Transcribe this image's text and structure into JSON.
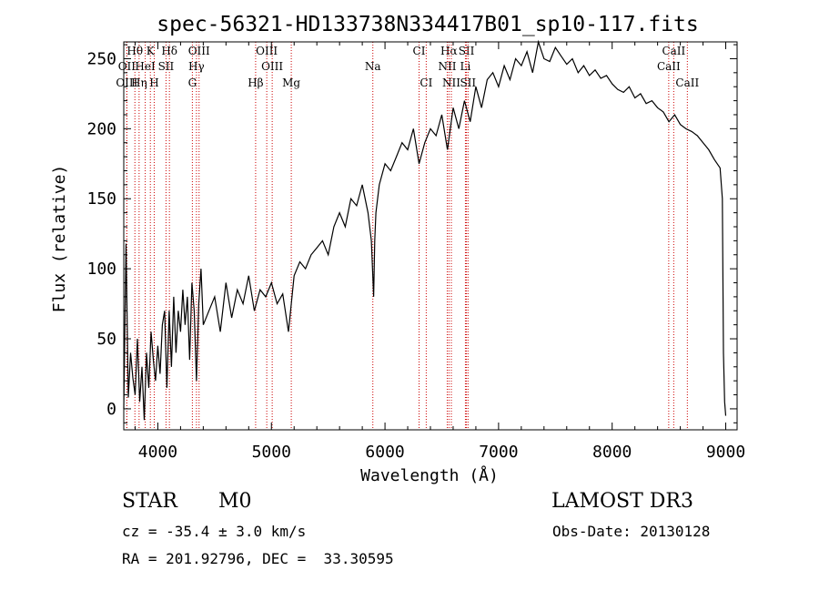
{
  "chart_data": {
    "type": "line",
    "title": "spec-56321-HD133738N334417B01_sp10-117.fits",
    "xlabel": "Wavelength (Å)",
    "ylabel": "Flux (relative)",
    "xlim": [
      3700,
      9100
    ],
    "ylim": [
      -15,
      262
    ],
    "xticks": [
      4000,
      5000,
      6000,
      7000,
      8000,
      9000
    ],
    "yticks": [
      0,
      50,
      100,
      150,
      200,
      250
    ],
    "series": [
      {
        "name": "flux",
        "x": [
          3700,
          3720,
          3740,
          3760,
          3780,
          3800,
          3820,
          3840,
          3860,
          3880,
          3900,
          3920,
          3940,
          3960,
          3980,
          4000,
          4020,
          4040,
          4060,
          4080,
          4100,
          4120,
          4140,
          4160,
          4180,
          4200,
          4220,
          4240,
          4260,
          4280,
          4300,
          4320,
          4340,
          4360,
          4380,
          4400,
          4450,
          4500,
          4550,
          4600,
          4650,
          4700,
          4750,
          4800,
          4850,
          4900,
          4950,
          5000,
          5050,
          5100,
          5150,
          5200,
          5250,
          5300,
          5350,
          5400,
          5450,
          5500,
          5550,
          5600,
          5650,
          5700,
          5750,
          5800,
          5850,
          5880,
          5900,
          5910,
          5920,
          5950,
          6000,
          6050,
          6100,
          6150,
          6200,
          6250,
          6300,
          6350,
          6400,
          6450,
          6500,
          6550,
          6600,
          6650,
          6700,
          6750,
          6800,
          6850,
          6900,
          6950,
          7000,
          7050,
          7100,
          7150,
          7200,
          7250,
          7300,
          7350,
          7400,
          7450,
          7500,
          7550,
          7600,
          7650,
          7700,
          7750,
          7800,
          7850,
          7900,
          7950,
          8000,
          8050,
          8100,
          8150,
          8200,
          8250,
          8300,
          8350,
          8400,
          8450,
          8500,
          8550,
          8600,
          8650,
          8700,
          8750,
          8800,
          8850,
          8900,
          8950,
          8970,
          8980,
          8990,
          9000
        ],
        "values": [
          0,
          118,
          8,
          40,
          22,
          10,
          50,
          5,
          30,
          -8,
          40,
          15,
          55,
          35,
          20,
          45,
          25,
          60,
          70,
          15,
          70,
          30,
          80,
          40,
          70,
          55,
          85,
          60,
          80,
          35,
          90,
          70,
          20,
          75,
          100,
          60,
          70,
          80,
          55,
          90,
          65,
          85,
          75,
          95,
          70,
          85,
          80,
          90,
          75,
          82,
          55,
          95,
          105,
          100,
          110,
          115,
          120,
          110,
          130,
          140,
          130,
          150,
          145,
          160,
          140,
          120,
          80,
          120,
          140,
          160,
          175,
          170,
          180,
          190,
          185,
          200,
          175,
          190,
          200,
          195,
          210,
          185,
          215,
          200,
          220,
          205,
          230,
          215,
          235,
          240,
          230,
          245,
          235,
          250,
          245,
          255,
          240,
          262,
          250,
          248,
          258,
          252,
          246,
          250,
          240,
          245,
          238,
          242,
          236,
          238,
          232,
          228,
          226,
          230,
          222,
          225,
          218,
          220,
          215,
          212,
          205,
          210,
          203,
          200,
          198,
          195,
          190,
          185,
          178,
          172,
          150,
          40,
          5,
          -5
        ]
      }
    ],
    "line_markers": [
      {
        "name": "Hθ",
        "x": 3798,
        "row": 1
      },
      {
        "name": "K",
        "x": 3934,
        "row": 1
      },
      {
        "name": "Hδ",
        "x": 4102,
        "row": 1
      },
      {
        "name": "OIII",
        "x": 4363,
        "row": 1
      },
      {
        "name": "OIII",
        "x": 4959,
        "row": 1
      },
      {
        "name": "CI",
        "x": 6300,
        "row": 1
      },
      {
        "name": "Hα",
        "x": 6563,
        "row": 1
      },
      {
        "name": "SII",
        "x": 6717,
        "row": 1
      },
      {
        "name": "CaII",
        "x": 8542,
        "row": 1
      },
      {
        "name": "OII",
        "x": 3727,
        "row": 2
      },
      {
        "name": "HeI",
        "x": 3889,
        "row": 2
      },
      {
        "name": "SII",
        "x": 4072,
        "row": 2
      },
      {
        "name": "Hγ",
        "x": 4340,
        "row": 2
      },
      {
        "name": "OIII",
        "x": 5007,
        "row": 2
      },
      {
        "name": "Na",
        "x": 5893,
        "row": 2
      },
      {
        "name": "NII",
        "x": 6548,
        "row": 2
      },
      {
        "name": "Li",
        "x": 6708,
        "row": 2
      },
      {
        "name": "CaII",
        "x": 8498,
        "row": 2
      },
      {
        "name": "OIII",
        "x": 3727,
        "row": 3
      },
      {
        "name": "Hη",
        "x": 3835,
        "row": 3
      },
      {
        "name": "H",
        "x": 3968,
        "row": 3
      },
      {
        "name": "G",
        "x": 4304,
        "row": 3
      },
      {
        "name": "Hβ",
        "x": 4861,
        "row": 3
      },
      {
        "name": "Mg",
        "x": 5175,
        "row": 3
      },
      {
        "name": "CI",
        "x": 6363,
        "row": 3
      },
      {
        "name": "NII",
        "x": 6584,
        "row": 3
      },
      {
        "name": "SII",
        "x": 6731,
        "row": 3
      },
      {
        "name": "CaII",
        "x": 8662,
        "row": 3
      }
    ]
  },
  "info": {
    "object_type": "STAR",
    "subclass": "M0",
    "survey": "LAMOST DR3",
    "redshift_line": "cz = -35.4 ± 3.0 km/s",
    "obs_date_line": "Obs-Date: 20130128",
    "coords_line": "RA = 201.92796, DEC =  33.30595"
  },
  "colors": {
    "marker_line": "#cc0000",
    "spectrum": "#000000",
    "axes": "#000000"
  }
}
